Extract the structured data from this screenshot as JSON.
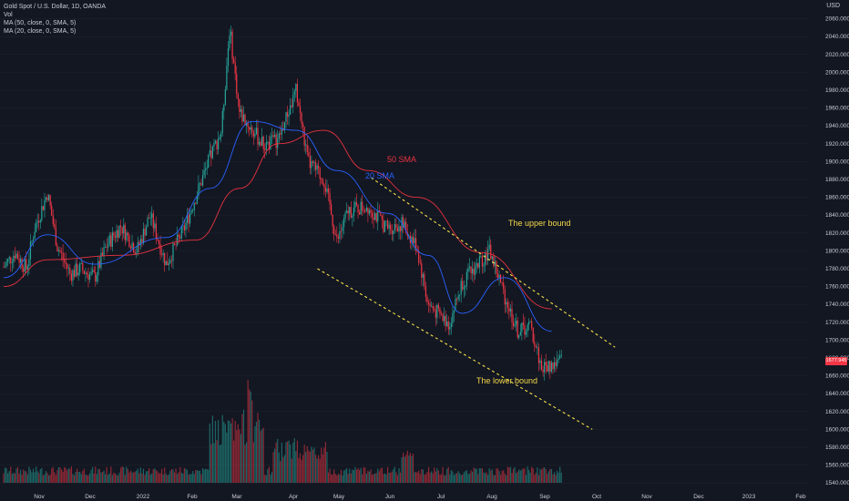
{
  "legend": {
    "title": "Gold Spot / U.S. Dollar, 1D, OANDA",
    "vol": "Vol",
    "ma1": "MA (50, close, 0, SMA, 5)",
    "ma2": "MA (20, close, 0, SMA, 5)"
  },
  "axis": {
    "currency": "USD"
  },
  "price_tag": "1677.945",
  "colors": {
    "background": "#131722",
    "up": "#26a69a",
    "down": "#f23645",
    "ma50": "#e8323f",
    "ma20": "#2962ff",
    "channel": "#f5e04a",
    "annotation": "#f5d94a"
  },
  "annotations": {
    "sma50": "50 SMA",
    "sma20": "20 SMA",
    "upper": "The upper bound",
    "lower": "The lower bound"
  },
  "chart_data": {
    "type": "candlestick",
    "title": "Gold Spot / U.S. Dollar, 1D, OANDA",
    "y_ticks": [
      1540,
      1560,
      1580,
      1600,
      1620,
      1640,
      1660,
      1680,
      1700,
      1720,
      1740,
      1760,
      1780,
      1800,
      1820,
      1840,
      1860,
      1880,
      1900,
      1920,
      1940,
      1960,
      1980,
      2000,
      2020,
      2040,
      2060
    ],
    "ylim": [
      1532,
      2081
    ],
    "x_ticks": [
      "Nov",
      "Dec",
      "2022",
      "Feb",
      "Mar",
      "Apr",
      "May",
      "Jun",
      "Jul",
      "Aug",
      "Sep",
      "Oct",
      "Nov",
      "Dec",
      "2023",
      "Feb"
    ],
    "series_close": [
      {
        "date": "2021-10-20",
        "close": 1782
      },
      {
        "date": "2021-10-27",
        "close": 1798
      },
      {
        "date": "2021-11-03",
        "close": 1780
      },
      {
        "date": "2021-11-08",
        "close": 1825
      },
      {
        "date": "2021-11-16",
        "close": 1865
      },
      {
        "date": "2021-11-22",
        "close": 1805
      },
      {
        "date": "2021-11-30",
        "close": 1774
      },
      {
        "date": "2021-12-06",
        "close": 1780
      },
      {
        "date": "2021-12-15",
        "close": 1770
      },
      {
        "date": "2021-12-22",
        "close": 1805
      },
      {
        "date": "2021-12-31",
        "close": 1828
      },
      {
        "date": "2022-01-10",
        "close": 1800
      },
      {
        "date": "2022-01-18",
        "close": 1840
      },
      {
        "date": "2022-01-28",
        "close": 1785
      },
      {
        "date": "2022-02-08",
        "close": 1825
      },
      {
        "date": "2022-02-15",
        "close": 1860
      },
      {
        "date": "2022-02-24",
        "close": 1905
      },
      {
        "date": "2022-03-03",
        "close": 1935
      },
      {
        "date": "2022-03-08",
        "close": 2050
      },
      {
        "date": "2022-03-14",
        "close": 1955
      },
      {
        "date": "2022-03-22",
        "close": 1935
      },
      {
        "date": "2022-03-29",
        "close": 1918
      },
      {
        "date": "2022-04-07",
        "close": 1925
      },
      {
        "date": "2022-04-18",
        "close": 1980
      },
      {
        "date": "2022-04-25",
        "close": 1900
      },
      {
        "date": "2022-05-05",
        "close": 1880
      },
      {
        "date": "2022-05-13",
        "close": 1810
      },
      {
        "date": "2022-05-20",
        "close": 1845
      },
      {
        "date": "2022-06-01",
        "close": 1850
      },
      {
        "date": "2022-06-13",
        "close": 1825
      },
      {
        "date": "2022-06-22",
        "close": 1830
      },
      {
        "date": "2022-07-01",
        "close": 1805
      },
      {
        "date": "2022-07-08",
        "close": 1740
      },
      {
        "date": "2022-07-21",
        "close": 1718
      },
      {
        "date": "2022-07-29",
        "close": 1765
      },
      {
        "date": "2022-08-10",
        "close": 1790
      },
      {
        "date": "2022-08-15",
        "close": 1800
      },
      {
        "date": "2022-08-24",
        "close": 1750
      },
      {
        "date": "2022-09-01",
        "close": 1710
      },
      {
        "date": "2022-09-09",
        "close": 1715
      },
      {
        "date": "2022-09-16",
        "close": 1668
      },
      {
        "date": "2022-09-22",
        "close": 1672
      },
      {
        "date": "2022-09-28",
        "close": 1677
      }
    ],
    "sma20_close": [
      {
        "date": "2021-10-20",
        "value": 1770
      },
      {
        "date": "2021-11-16",
        "value": 1818
      },
      {
        "date": "2021-12-15",
        "value": 1785
      },
      {
        "date": "2022-01-28",
        "value": 1815
      },
      {
        "date": "2022-02-24",
        "value": 1870
      },
      {
        "date": "2022-03-22",
        "value": 1945
      },
      {
        "date": "2022-04-18",
        "value": 1935
      },
      {
        "date": "2022-05-13",
        "value": 1890
      },
      {
        "date": "2022-06-13",
        "value": 1842
      },
      {
        "date": "2022-07-08",
        "value": 1795
      },
      {
        "date": "2022-07-29",
        "value": 1730
      },
      {
        "date": "2022-08-24",
        "value": 1770
      },
      {
        "date": "2022-09-22",
        "value": 1710
      }
    ],
    "sma50_close": [
      {
        "date": "2021-10-20",
        "value": 1760
      },
      {
        "date": "2021-11-16",
        "value": 1790
      },
      {
        "date": "2021-12-31",
        "value": 1795
      },
      {
        "date": "2022-02-15",
        "value": 1812
      },
      {
        "date": "2022-03-14",
        "value": 1870
      },
      {
        "date": "2022-04-07",
        "value": 1920
      },
      {
        "date": "2022-05-05",
        "value": 1935
      },
      {
        "date": "2022-06-01",
        "value": 1890
      },
      {
        "date": "2022-07-01",
        "value": 1860
      },
      {
        "date": "2022-08-10",
        "value": 1798
      },
      {
        "date": "2022-09-22",
        "value": 1735
      }
    ],
    "channel_upper": [
      {
        "date": "2022-06-03",
        "value": 1882
      },
      {
        "date": "2022-10-31",
        "value": 1692
      }
    ],
    "channel_lower": [
      {
        "date": "2022-05-01",
        "value": 1780
      },
      {
        "date": "2022-10-17",
        "value": 1600
      }
    ],
    "volume": "relative volume bars, peak in early March 2022"
  }
}
